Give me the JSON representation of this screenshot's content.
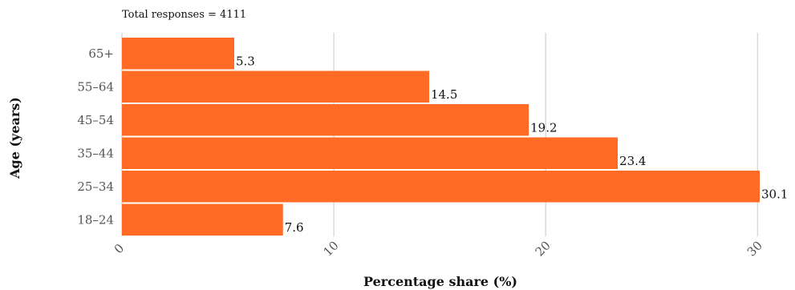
{
  "chart_data": {
    "type": "bar",
    "orientation": "horizontal",
    "note": "Total responses =  4111",
    "categories": [
      "18–24",
      "25–34",
      "35–44",
      "45–54",
      "55–64",
      "65+"
    ],
    "values": [
      7.6,
      30.1,
      23.4,
      19.2,
      14.5,
      5.3
    ],
    "value_labels": [
      "7.6",
      "30.1",
      "23.4",
      "19.2",
      "14.5",
      "5.3"
    ],
    "xlabel": "Percentage share (%)",
    "ylabel": "Age (years)",
    "xlim": [
      0,
      30.1
    ],
    "xticks": [
      0,
      10,
      20,
      30
    ],
    "xtick_labels": [
      "0",
      "10",
      "20",
      "30"
    ],
    "grid": "vertical",
    "bar_color": "#ff6a24",
    "grid_color": "#d9d9d9"
  }
}
